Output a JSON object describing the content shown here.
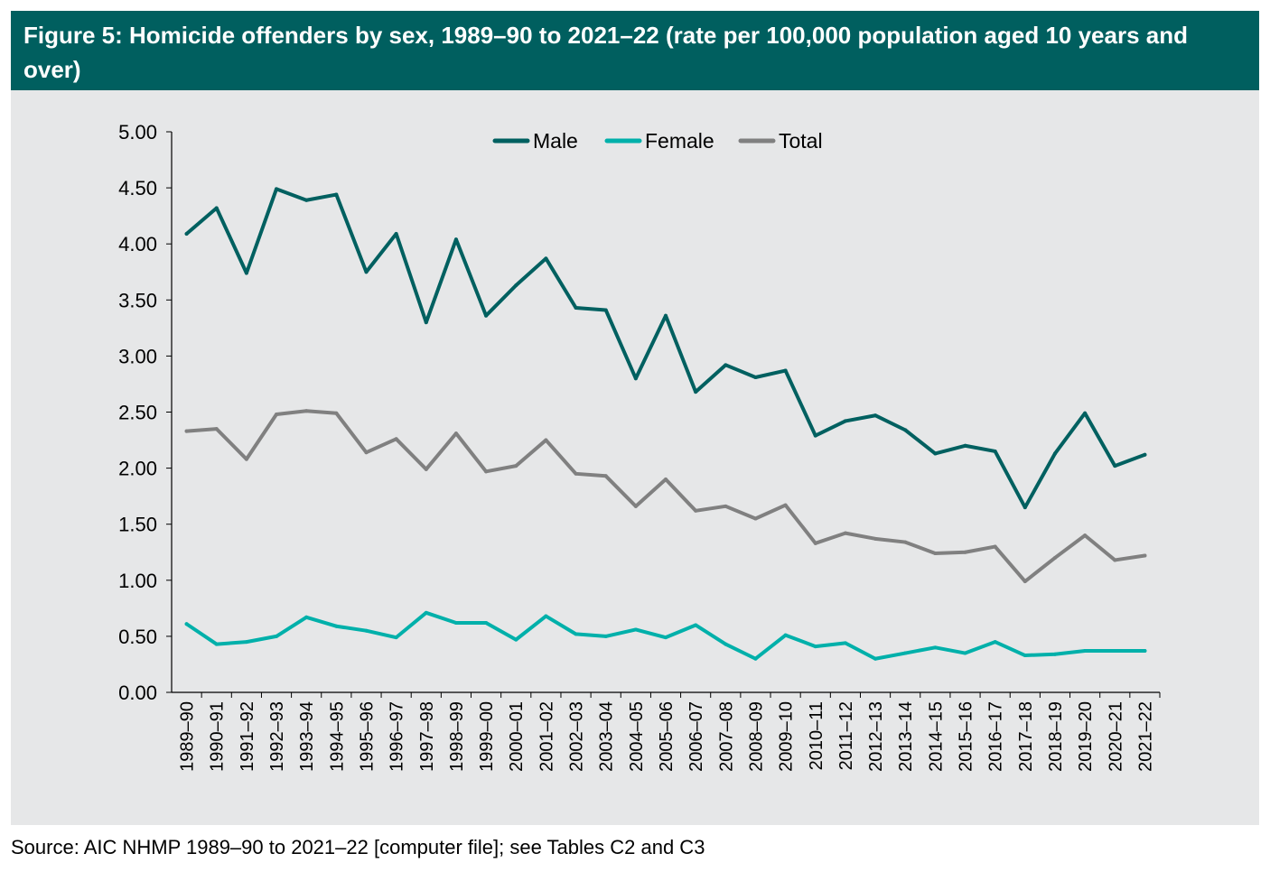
{
  "title": "Figure 5: Homicide offenders by sex, 1989–90 to 2021–22 (rate per 100,000 population aged 10 years and over)",
  "source": "Source: AIC NHMP 1989–90 to 2021–22 [computer file]; see Tables C2 and C3",
  "chart_data": {
    "type": "line",
    "title": "Figure 5: Homicide offenders by sex, 1989–90 to 2021–22 (rate per 100,000 population aged 10 years and over)",
    "xlabel": "",
    "ylabel": "",
    "ylim": [
      0,
      5
    ],
    "yticks": [
      "0.00",
      "0.50",
      "1.00",
      "1.50",
      "2.00",
      "2.50",
      "3.00",
      "3.50",
      "4.00",
      "4.50",
      "5.00"
    ],
    "grid": false,
    "legend": "top-center",
    "categories": [
      "1989–90",
      "1990–91",
      "1991–92",
      "1992–93",
      "1993–94",
      "1994–95",
      "1995–96",
      "1996–97",
      "1997–98",
      "1998–99",
      "1999–00",
      "2000–01",
      "2001–02",
      "2002–03",
      "2003–04",
      "2004–05",
      "2005–06",
      "2006–07",
      "2007–08",
      "2008–09",
      "2009–10",
      "2010–11",
      "2011–12",
      "2012–13",
      "2013–14",
      "2014–15",
      "2015–16",
      "2016–17",
      "2017–18",
      "2018–19",
      "2019–20",
      "2020–21",
      "2021–22"
    ],
    "series": [
      {
        "name": "Male",
        "color": "#006060",
        "values": [
          4.09,
          4.32,
          3.74,
          4.49,
          4.39,
          4.44,
          3.75,
          4.09,
          3.3,
          4.04,
          3.36,
          3.63,
          3.87,
          3.43,
          3.41,
          2.8,
          3.36,
          2.68,
          2.92,
          2.81,
          2.87,
          2.29,
          2.42,
          2.47,
          2.34,
          2.13,
          2.2,
          2.15,
          1.65,
          2.13,
          2.49,
          2.02,
          2.12
        ]
      },
      {
        "name": "Female",
        "color": "#00b0aa",
        "values": [
          0.61,
          0.43,
          0.45,
          0.5,
          0.67,
          0.59,
          0.55,
          0.49,
          0.71,
          0.62,
          0.62,
          0.47,
          0.68,
          0.52,
          0.5,
          0.56,
          0.49,
          0.6,
          0.43,
          0.3,
          0.51,
          0.41,
          0.44,
          0.3,
          0.35,
          0.4,
          0.35,
          0.45,
          0.33,
          0.34,
          0.37,
          0.37,
          0.37
        ]
      },
      {
        "name": "Total",
        "color": "#808080",
        "values": [
          2.33,
          2.35,
          2.08,
          2.48,
          2.51,
          2.49,
          2.14,
          2.26,
          1.99,
          2.31,
          1.97,
          2.02,
          2.25,
          1.95,
          1.93,
          1.66,
          1.9,
          1.62,
          1.66,
          1.55,
          1.67,
          1.33,
          1.42,
          1.37,
          1.34,
          1.24,
          1.25,
          1.3,
          0.99,
          1.2,
          1.4,
          1.18,
          1.22
        ]
      }
    ]
  }
}
